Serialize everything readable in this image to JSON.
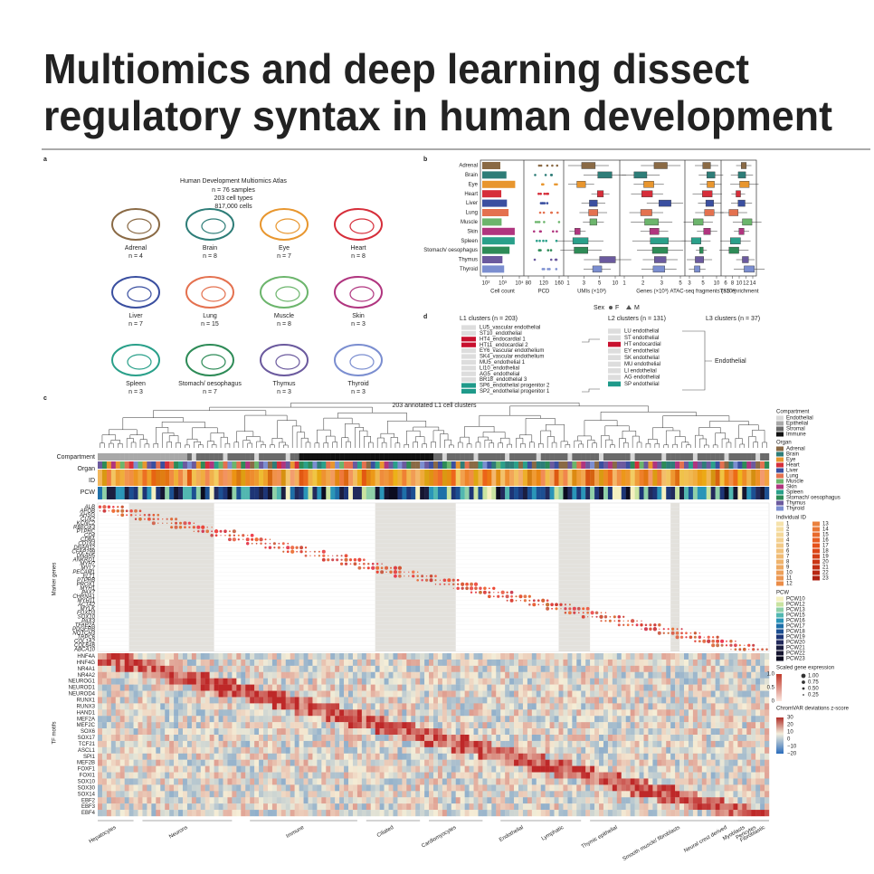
{
  "header": {
    "title_line1": "Multiomics and deep learning dissect",
    "title_line2": "regulatory syntax in human development"
  },
  "panel_a": {
    "label": "a",
    "atlas_title": "Human Development Multiomics Atlas",
    "atlas_lines": [
      "n = 76 samples",
      "203 cell types",
      "817,000 cells"
    ],
    "organs": [
      {
        "name": "Adrenal",
        "n": "n = 4",
        "color": "#8a6a45"
      },
      {
        "name": "Brain",
        "n": "n = 8",
        "color": "#2e7d78"
      },
      {
        "name": "Eye",
        "n": "n = 7",
        "color": "#e8962e"
      },
      {
        "name": "Heart",
        "n": "n = 8",
        "color": "#d62e3a"
      },
      {
        "name": "Liver",
        "n": "n = 7",
        "color": "#3a4fa0"
      },
      {
        "name": "Lung",
        "n": "n = 15",
        "color": "#e4714f"
      },
      {
        "name": "Muscle",
        "n": "n = 8",
        "color": "#6cb56c"
      },
      {
        "name": "Skin",
        "n": "n = 3",
        "color": "#b0357f"
      },
      {
        "name": "Spleen",
        "n": "n = 3",
        "color": "#2aa08a"
      },
      {
        "name": "Stomach/ oesophagus",
        "n": "n = 7",
        "color": "#2e8b57"
      },
      {
        "name": "Thymus",
        "n": "n = 3",
        "color": "#6b5a9e"
      },
      {
        "name": "Thyroid",
        "n": "n = 3",
        "color": "#7b8ed0"
      }
    ]
  },
  "panel_b": {
    "label": "b",
    "axes": [
      {
        "label": "Cell count",
        "ticks": [
          "10²",
          "10³",
          "10⁴"
        ]
      },
      {
        "label": "PCD",
        "ticks": [
          "80",
          "120",
          "160"
        ]
      },
      {
        "label": "UMIs (×10³)",
        "ticks": [
          "1",
          "3",
          "5",
          "10"
        ]
      },
      {
        "label": "Genes (×10³)",
        "ticks": [
          "1",
          "2",
          "3",
          "5"
        ]
      },
      {
        "label": "ATAC-seq fragments (×10³)",
        "ticks": [
          "3",
          "5",
          "10"
        ]
      },
      {
        "label": "TSS enrichment",
        "ticks": [
          "6",
          "8",
          "10",
          "12",
          "14"
        ]
      }
    ],
    "sex_legend": {
      "title": "Sex",
      "items": [
        "F",
        "M"
      ]
    }
  },
  "panel_d": {
    "label": "d",
    "l1_title": "L1 clusters (n = 203)",
    "l2_title": "L2 clusters (n = 131)",
    "l3_title": "L3 clusters (n = 37)",
    "l1": [
      "LU5_vascular endothelial",
      "ST10_endothelial",
      "HT4_endocardial 1",
      "HT11_endocardial 2",
      "EY6_vascular endothelium",
      "SK4_vascular endothelium",
      "MU5_endothelial 1",
      "LI10_endothelial",
      "AG5_endothelial",
      "BR18_endothelial 3",
      "SP6_endothelial progenitor 2",
      "SP2_endothelial progenitor 1"
    ],
    "l2": [
      "LU endothelial",
      "ST endothelial",
      "HT endocardial",
      "EY endothelial",
      "SK endothelial",
      "MU endothelial",
      "LI endothelial",
      "AG endothelial",
      "SP endothelial"
    ],
    "l3": "Endothelial"
  },
  "panel_c": {
    "label": "c",
    "title": "203 annotated L1 cell clusters",
    "row_labels": [
      "Compartment",
      "Organ",
      "ID",
      "PCW"
    ],
    "marker_title": "Marker genes",
    "tf_title": "TF motifs",
    "genes": [
      "ALB",
      "APOB",
      "AHSG",
      "CUX2",
      "KCNC2",
      "RBFOX3",
      "PTPRC",
      "CD4",
      "CD8A",
      "CD163",
      "DNAH12",
      "CFAP299",
      "DNAH5",
      "ANKRD1",
      "MYH7",
      "MYL7",
      "PECAM1",
      "FLT1",
      "PTPRB",
      "PROX1",
      "MYH1",
      "PAX7",
      "CHRNA1",
      "MYH11",
      "ACTA2",
      "MYLK",
      "FOXD3",
      "SOX10",
      "PAX3",
      "TFAP2A",
      "PDGFRB",
      "NOTCH3",
      "TRPC6",
      "COL1A2",
      "COL6A6",
      "ABCA10"
    ],
    "tfs": [
      "HNF4A",
      "HNF4G",
      "NR4A1",
      "NR4A2",
      "NEUROG1",
      "NEUROD1",
      "NEUROD4",
      "RUNX1",
      "RUNX3",
      "HAND1",
      "MEF2A",
      "MEF2C",
      "SOX6",
      "SOX17",
      "TCF21",
      "ASCL1",
      "SPI1",
      "MEF2B",
      "FOXF1",
      "FOXI1",
      "SOX10",
      "SOX30",
      "SOX14",
      "EBF2",
      "EBF3",
      "EBF4"
    ],
    "groups": [
      "Hepatocytes",
      "Neurons",
      "Immune",
      "Ciliated",
      "Cardiomyocytes",
      "Endothelial",
      "Lymphatic",
      "Thymic epithelial",
      "Smooth muscle/ fibroblasts",
      "Neural crest derived",
      "Myoblasts",
      "Pericytes",
      "Fibroblastic"
    ],
    "compartment_legend": {
      "title": "Compartment",
      "items": [
        {
          "name": "Endothelial",
          "color": "#d8d8d8"
        },
        {
          "name": "Epithelial",
          "color": "#a8a8a8"
        },
        {
          "name": "Stromal",
          "color": "#6a6a6a"
        },
        {
          "name": "Immune",
          "color": "#111111"
        }
      ]
    },
    "organ_legend_title": "Organ",
    "id_legend_title": "Individual ID",
    "ids": [
      1,
      2,
      3,
      4,
      5,
      6,
      7,
      8,
      9,
      10,
      11,
      12,
      13,
      14,
      15,
      16,
      17,
      18,
      19,
      20,
      21,
      22,
      23
    ],
    "pcw_legend_title": "PCW",
    "pcws": [
      "PCW10",
      "PCW12",
      "PCW13",
      "PCW15",
      "PCW16",
      "PCW17",
      "PCW18",
      "PCW19",
      "PCW20",
      "PCW21",
      "PCW22",
      "PCW23"
    ],
    "expr_title": "Scaled gene expression",
    "expr_ticks": [
      "1.0",
      "0.5",
      "0"
    ],
    "dot_sizes": [
      "1.00",
      "0.75",
      "0.50",
      "0.25"
    ],
    "chromvar_title": "ChromVAR deviations z-score",
    "chromvar_ticks": [
      "30",
      "20",
      "10",
      "0",
      "−10",
      "−20"
    ]
  }
}
